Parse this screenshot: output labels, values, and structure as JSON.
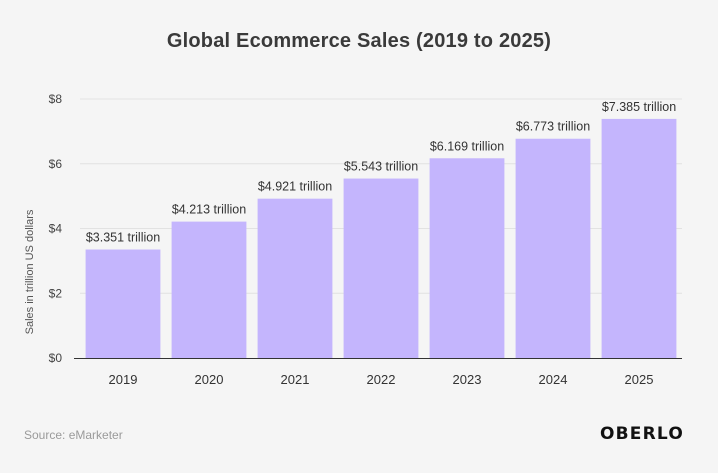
{
  "chart_data": {
    "type": "bar",
    "title": "Global Ecommerce Sales (2019 to 2025)",
    "xlabel": "",
    "ylabel": "Sales in trillion US dollars",
    "categories": [
      "2019",
      "2020",
      "2021",
      "2022",
      "2023",
      "2024",
      "2025"
    ],
    "values": [
      3.351,
      4.213,
      4.921,
      5.543,
      6.169,
      6.773,
      7.385
    ],
    "data_labels": [
      "$3.351 trillion",
      "$4.213 trillion",
      "$4.921 trillion",
      "$5.543 trillion",
      "$6.169 trillion",
      "$6.773 trillion",
      "$7.385 trillion"
    ],
    "y_ticks": [
      0,
      2,
      4,
      6,
      8
    ],
    "y_tick_labels": [
      "$0",
      "$2",
      "$4",
      "$6",
      "$8"
    ],
    "ylim": [
      0,
      8
    ],
    "grid": true,
    "bar_color": "#c4b5fd",
    "axis_color": "#333333",
    "grid_color": "#e2e2e2"
  },
  "footer": {
    "source": "Source: eMarketer",
    "brand": "OBERLO"
  }
}
